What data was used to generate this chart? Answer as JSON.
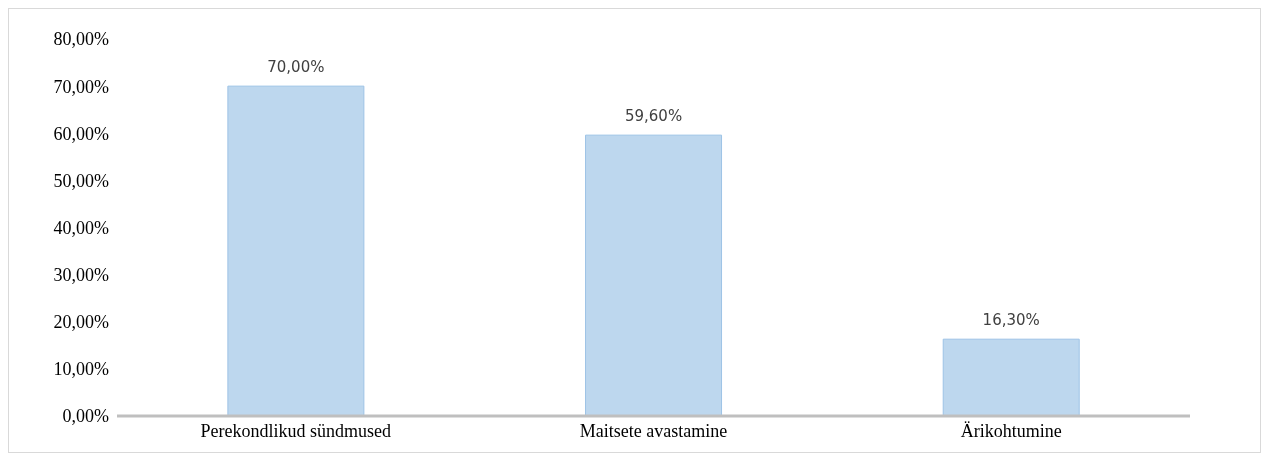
{
  "chart_data": {
    "type": "bar",
    "categories": [
      "Perekondlikud sündmused",
      "Maitsete avastamine",
      "Ärikohtumine"
    ],
    "values": [
      70,
      59.6,
      16.3
    ],
    "color": "#bdd7ee",
    "value_labels": [
      "70,00%",
      "59,60%",
      "16,30%"
    ],
    "ylim": [
      0,
      80
    ],
    "yticks": [
      {
        "value": 0,
        "label": "0,00%"
      },
      {
        "value": 10,
        "label": "10,00%"
      },
      {
        "value": 20,
        "label": "20,00%"
      },
      {
        "value": 30,
        "label": "30,00%"
      },
      {
        "value": 40,
        "label": "40,00%"
      },
      {
        "value": 50,
        "label": "50,00%"
      },
      {
        "value": 60,
        "label": "60,00%"
      },
      {
        "value": 70,
        "label": "70,00%"
      },
      {
        "value": 80,
        "label": "80,00%"
      }
    ],
    "grid": false
  }
}
